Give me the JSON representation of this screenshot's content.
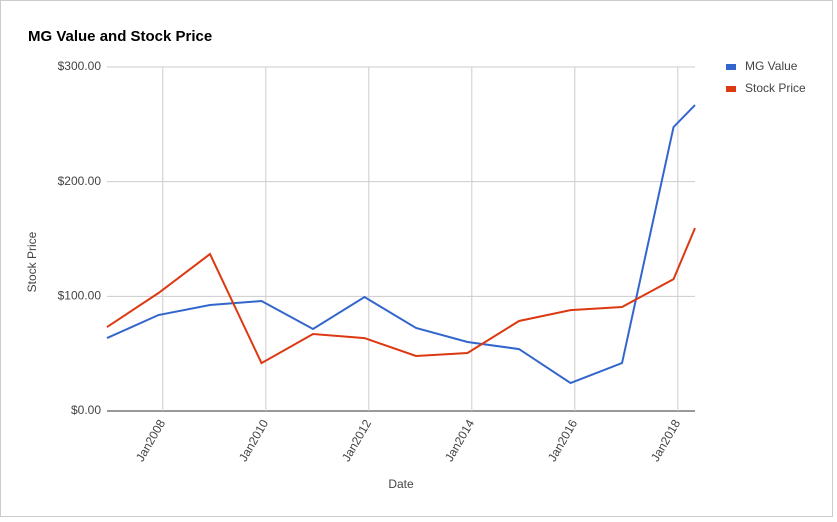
{
  "chart_data": {
    "type": "line",
    "title": "MG Value and Stock Price",
    "x_label": "Date",
    "y_label": "Stock Price",
    "x": [
      "2006-12",
      "2007-12",
      "2008-12",
      "2009-12",
      "2010-12",
      "2011-12",
      "2012-12",
      "2013-12",
      "2014-12",
      "2015-12",
      "2016-12",
      "2017-12",
      "2018-05"
    ],
    "series": [
      {
        "name": "MG Value",
        "color": "#3366cc",
        "values": [
          63.6,
          83.7,
          92.4,
          95.9,
          71.5,
          99.4,
          72.4,
          60.2,
          54,
          24.4,
          41.8,
          247.6,
          266.8
        ]
      },
      {
        "name": "Stock Price",
        "color": "#dc3912",
        "values": [
          73.2,
          102.9,
          136.9,
          41.8,
          67.1,
          63.6,
          48,
          50.6,
          78.5,
          88,
          90.7,
          115,
          159.5
        ]
      }
    ],
    "xlim": [
      "2006-12",
      "2018-05"
    ],
    "xticks": [
      {
        "value": "2008-01",
        "label": "Jan2008"
      },
      {
        "value": "2010-01",
        "label": "Jan2010"
      },
      {
        "value": "2012-01",
        "label": "Jan2012"
      },
      {
        "value": "2014-01",
        "label": "Jan2014"
      },
      {
        "value": "2016-01",
        "label": "Jan2016"
      },
      {
        "value": "2018-01",
        "label": "Jan2018"
      }
    ],
    "ylim": [
      0,
      300
    ],
    "yticks": [
      {
        "value": 0,
        "label": "$0.00"
      },
      {
        "value": 100,
        "label": "$100.00"
      },
      {
        "value": 200,
        "label": "$200.00"
      },
      {
        "value": 300,
        "label": "$300.00"
      }
    ],
    "grid": true,
    "legend": "right"
  }
}
